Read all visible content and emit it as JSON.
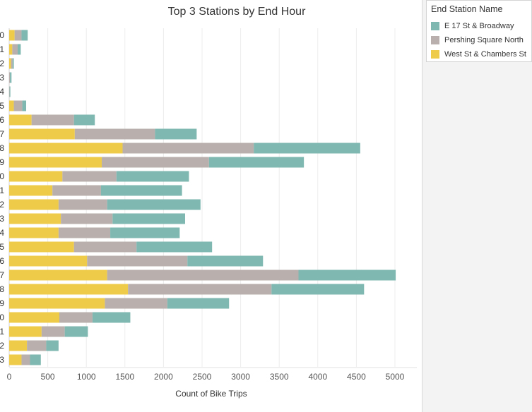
{
  "colors": {
    "E 17 St & Broadway": "#7fb7b1",
    "Pershing Square North": "#b9b0ad",
    "West St & Chambers St": "#eecb48"
  },
  "chart_data": {
    "type": "bar",
    "orientation": "horizontal",
    "stacked": true,
    "title": "Top 3 Stations by End Hour",
    "xlabel": "Count of Bike Trips",
    "ylabel": "",
    "xlim": [
      0,
      5250
    ],
    "xticks": [
      0,
      500,
      1000,
      1500,
      2000,
      2500,
      3000,
      3500,
      4000,
      4500,
      5000
    ],
    "grid": "vertical",
    "categories": [
      "0",
      "1",
      "2",
      "3",
      "4",
      "5",
      "6",
      "7",
      "8",
      "9",
      "0",
      "1",
      "2",
      "3",
      "4",
      "5",
      "6",
      "7",
      "8",
      "9",
      "0",
      "1",
      "2",
      "3"
    ],
    "series": [
      {
        "name": "West St & Chambers St",
        "values": [
          70,
          40,
          25,
          0,
          0,
          60,
          290,
          850,
          1470,
          1200,
          690,
          560,
          640,
          670,
          640,
          840,
          1010,
          1270,
          1540,
          1240,
          650,
          420,
          230,
          160
        ]
      },
      {
        "name": "Pershing Square North",
        "values": [
          90,
          70,
          20,
          10,
          5,
          110,
          550,
          1040,
          1700,
          1390,
          700,
          630,
          630,
          670,
          670,
          810,
          1300,
          2480,
          1860,
          810,
          430,
          300,
          250,
          110
        ]
      },
      {
        "name": "E 17 St & Broadway",
        "values": [
          80,
          40,
          15,
          20,
          10,
          50,
          270,
          540,
          1380,
          1230,
          940,
          1050,
          1210,
          940,
          900,
          980,
          980,
          1260,
          1200,
          800,
          490,
          300,
          160,
          140
        ]
      }
    ]
  },
  "legend": {
    "title": "End Station Name",
    "items": [
      "E 17 St & Broadway",
      "Pershing Square North",
      "West St & Chambers St"
    ]
  }
}
